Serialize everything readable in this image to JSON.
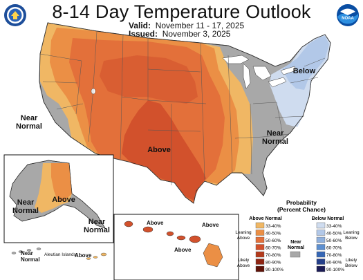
{
  "title": "8-14 Day Temperature Outlook",
  "valid_label": "Valid:",
  "valid_value": "November 11 - 17, 2025",
  "issued_label": "Issued:",
  "issued_value": "November 3, 2025",
  "logos": {
    "left": "doc-seal-icon",
    "right": "noaa-logo-icon"
  },
  "map_labels": {
    "above_main": "Above",
    "below_ne": "Below",
    "near_west": [
      "Near",
      "Normal"
    ],
    "near_se": [
      "Near",
      "Normal"
    ],
    "ak_above": "Above",
    "ak_near_w": [
      "Near",
      "Normal"
    ],
    "ak_near_se": [
      "Near",
      "Normal"
    ],
    "aleutian_near": [
      "Near",
      "Normal"
    ],
    "aleutian_islands": "Aleutian Islands",
    "aleutian_above": "Above",
    "hi_above_1": "Above",
    "hi_above_2": "Above",
    "hi_above_3": "Above"
  },
  "legend": {
    "title_line1": "Probability",
    "title_line2": "(Percent Chance)",
    "above_header": "Above Normal",
    "below_header": "Below Normal",
    "near_header": [
      "Near",
      "Normal"
    ],
    "leaning_above": [
      "Leaning",
      "Above"
    ],
    "likely_above": [
      "Likely",
      "Above"
    ],
    "leaning_below": [
      "Leaning",
      "Below"
    ],
    "likely_below": [
      "Likely",
      "Below"
    ],
    "ranges": [
      "33-40%",
      "40-50%",
      "50-60%",
      "60-70%",
      "70-80%",
      "80-90%",
      "90-100%"
    ],
    "above_colors": [
      "#f0b764",
      "#eb8f45",
      "#e3703a",
      "#d2512c",
      "#b23a1c",
      "#8e2412",
      "#5e1208"
    ],
    "below_colors": [
      "#cfdcef",
      "#b2c8e8",
      "#8fb0dd",
      "#5d8fd0",
      "#3566b5",
      "#243f8a",
      "#1b1b55"
    ],
    "near_color": "#a8a8a8"
  },
  "categories_colors": {
    "above_33_40": "#f0b764",
    "above_40_50": "#eb8f45",
    "above_50_60": "#e3703a",
    "above_60_70": "#d2512c",
    "near": "#a8a8a8",
    "below_33_40": "#cfdcef",
    "below_40_50": "#b2c8e8"
  }
}
